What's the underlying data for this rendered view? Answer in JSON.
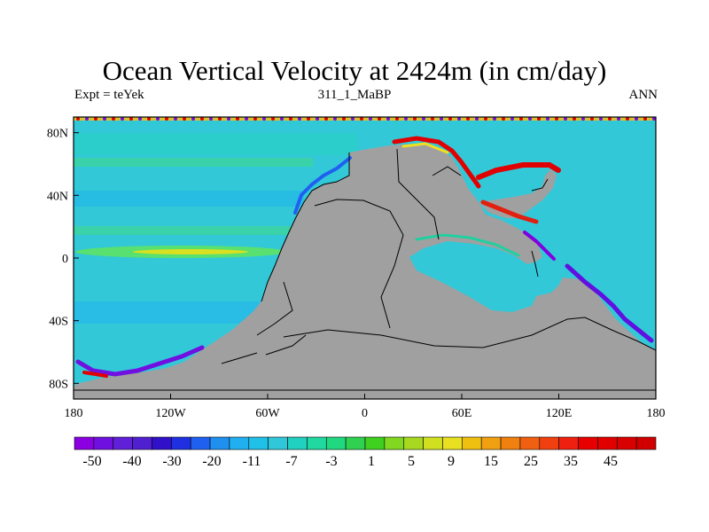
{
  "title": "Ocean Vertical Velocity at 2424m (in cm/day)",
  "left_label": "Expt = teYek",
  "center_label": "311_1_MaBP",
  "right_label": "ANN",
  "map_data": {
    "projection": "cylindrical-equidistant",
    "lon_range": [
      -180,
      180
    ],
    "lat_range": [
      -90,
      90
    ],
    "land_color": "#a0a0a0",
    "background_ocean_color": "#32c8d8",
    "lon_ticks": [
      {
        "value": -180,
        "label": "180"
      },
      {
        "value": -120,
        "label": "120W"
      },
      {
        "value": -60,
        "label": "60W"
      },
      {
        "value": 0,
        "label": "0"
      },
      {
        "value": 60,
        "label": "60E"
      },
      {
        "value": 120,
        "label": "120E"
      },
      {
        "value": 180,
        "label": "180"
      }
    ],
    "lat_ticks": [
      {
        "value": 80,
        "label": "80N"
      },
      {
        "value": 40,
        "label": "40N"
      },
      {
        "value": 0,
        "label": "0"
      },
      {
        "value": -40,
        "label": "40S"
      },
      {
        "value": -80,
        "label": "80S"
      }
    ]
  },
  "colorbar": {
    "labels": [
      "-50",
      "-40",
      "-30",
      "-20",
      "-11",
      "-7",
      "-3",
      "1",
      "5",
      "9",
      "15",
      "25",
      "35",
      "45"
    ],
    "colors": [
      "#8a00e0",
      "#7010e0",
      "#6020d8",
      "#5020d0",
      "#3010c8",
      "#2030e0",
      "#2060f0",
      "#2090f0",
      "#20b0f0",
      "#20c0e8",
      "#30c8d8",
      "#20d0c0",
      "#20d8a0",
      "#20d880",
      "#30d050",
      "#40d020",
      "#80d820",
      "#a8d820",
      "#d0e020",
      "#e8e020",
      "#f0c010",
      "#f0a010",
      "#f08010",
      "#f06010",
      "#f04010",
      "#f02010",
      "#e80000",
      "#e00000",
      "#d80000",
      "#d00000"
    ]
  }
}
